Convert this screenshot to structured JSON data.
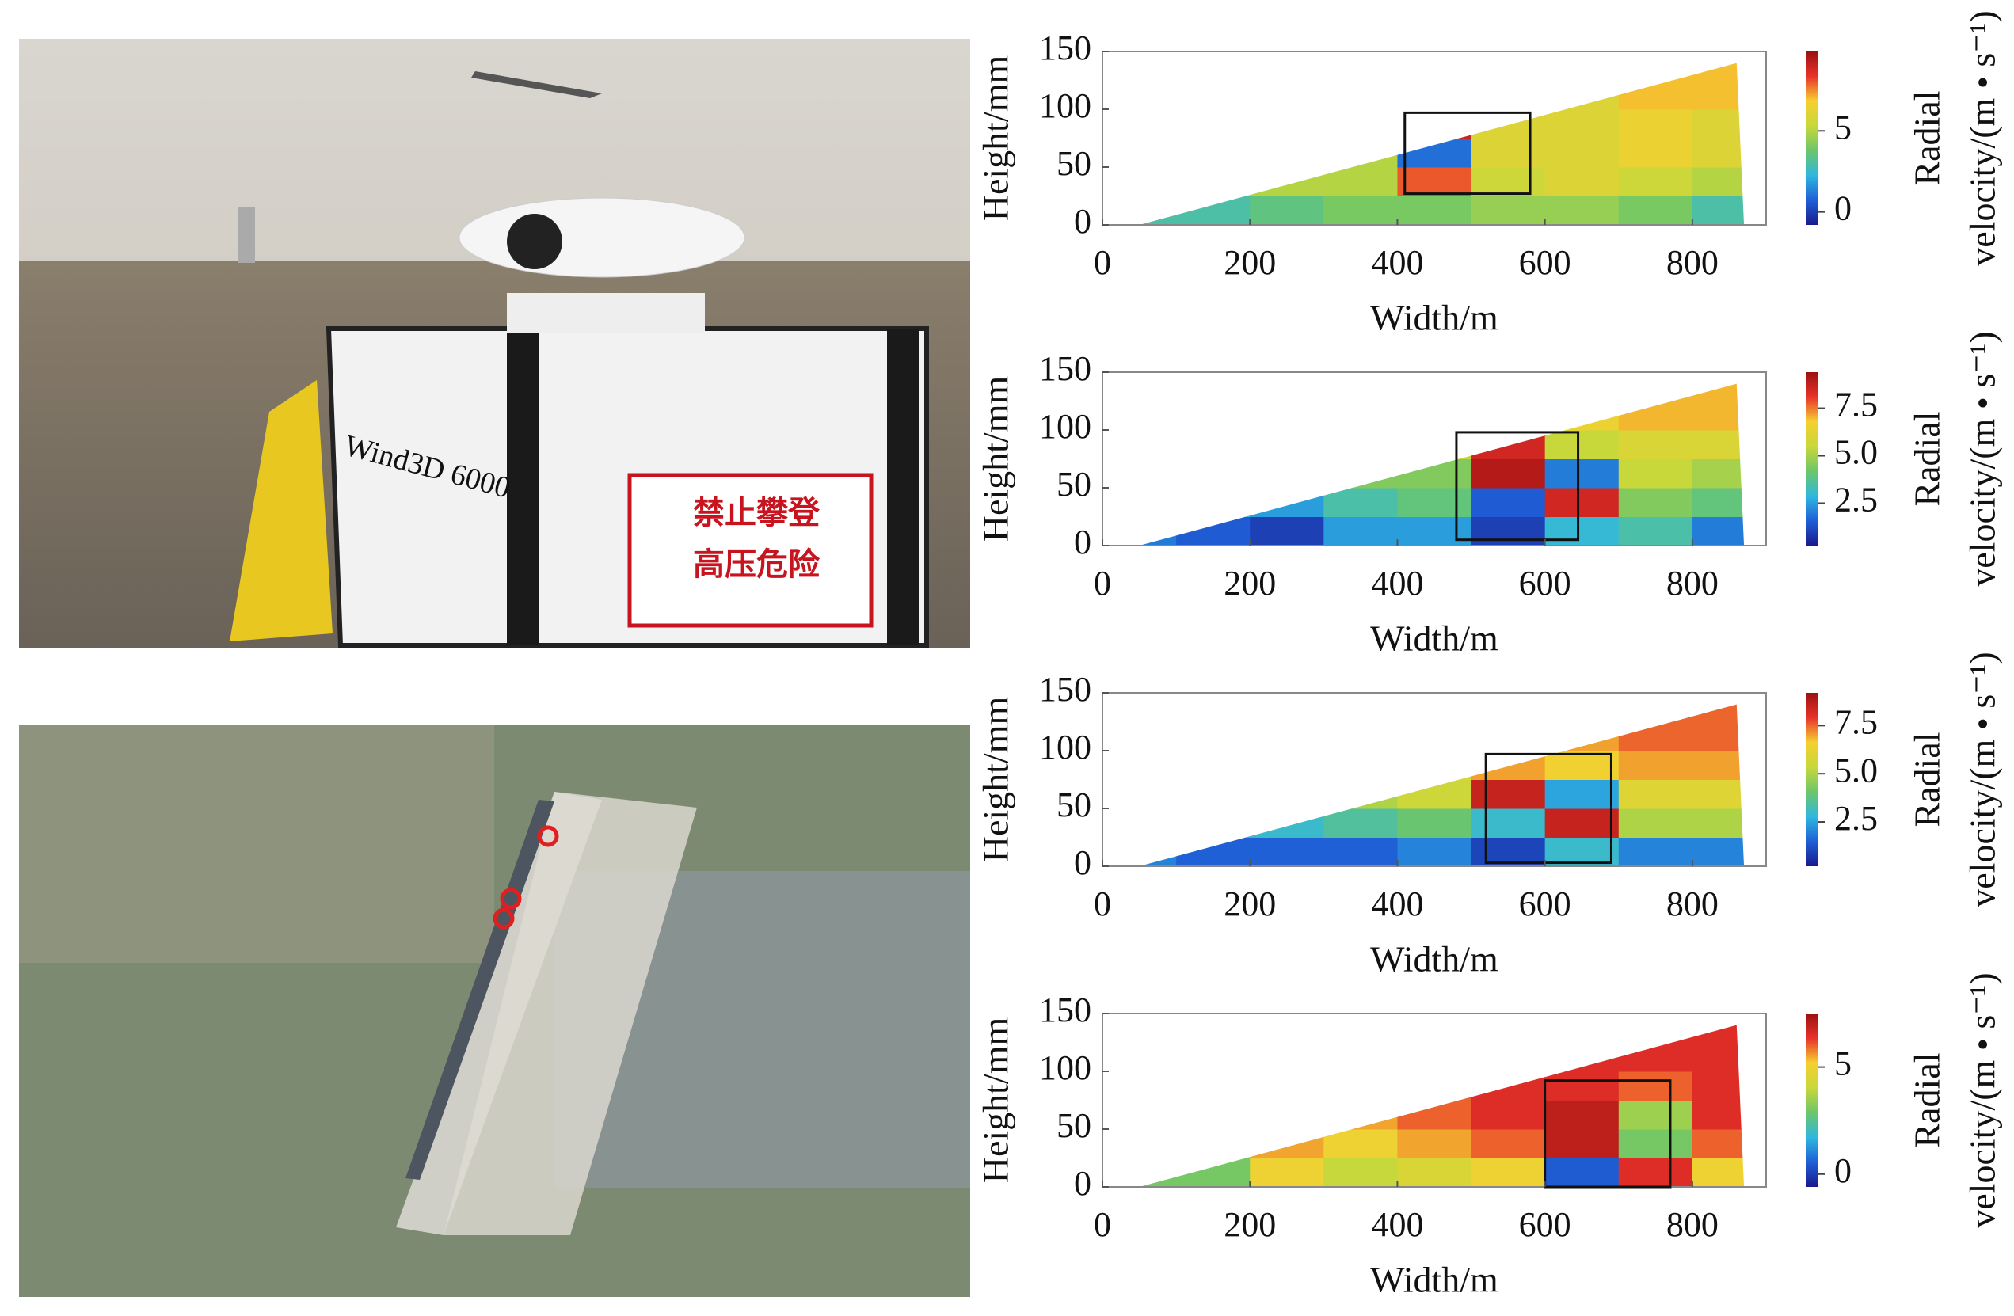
{
  "photos": {
    "lidar_texts": [
      "Wind3D 6000",
      "禁止攀登",
      "高压危险"
    ]
  },
  "chart_data": [
    {
      "type": "heatmap",
      "xlabel": "Width/m",
      "ylabel": "Height/mm",
      "colorbar_label": [
        "Radial",
        "velocity/(m • s⁻¹)"
      ],
      "xlim": [
        0,
        900
      ],
      "ylim": [
        0,
        150
      ],
      "xticks": [
        0,
        200,
        400,
        600,
        800
      ],
      "yticks": [
        0,
        50,
        100,
        150
      ],
      "clim": [
        -0.8,
        9.9
      ],
      "cticks": [
        0,
        5
      ],
      "colormap": [
        "#1a1a8c",
        "#1f5fd6",
        "#2fb8e0",
        "#6cc66a",
        "#c8d83a",
        "#f5d030",
        "#e8322a",
        "#9c1010"
      ],
      "xbins": [
        0,
        100,
        200,
        300,
        400,
        500,
        600,
        700,
        800,
        900
      ],
      "ybins": [
        0,
        25,
        50,
        75,
        100,
        125,
        150
      ],
      "z": [
        [
          3,
          3,
          3.5,
          4,
          4,
          4.5,
          4.5,
          4,
          3
        ],
        [
          5,
          5,
          5,
          5,
          8,
          5.5,
          6,
          5.5,
          5
        ],
        [
          5,
          5,
          5,
          5,
          1,
          6,
          6,
          6.5,
          6
        ],
        [
          5,
          5,
          5,
          5,
          9,
          6,
          6,
          6.5,
          6
        ],
        [
          6,
          6,
          6,
          6,
          6,
          6,
          6,
          7,
          7
        ],
        [
          6,
          6,
          6,
          6,
          6,
          6,
          6,
          7,
          7
        ]
      ],
      "sector": [
        [
          50,
          0
        ],
        [
          860,
          140
        ],
        [
          870,
          0
        ]
      ],
      "box": {
        "x": [
          410,
          580
        ],
        "y": [
          27,
          97
        ]
      }
    },
    {
      "type": "heatmap",
      "xlabel": "Width/m",
      "ylabel": "Height/mm",
      "colorbar_label": [
        "Radial",
        "velocity/(m • s⁻¹)"
      ],
      "xlim": [
        0,
        900
      ],
      "ylim": [
        0,
        150
      ],
      "xticks": [
        0,
        200,
        400,
        600,
        800
      ],
      "yticks": [
        0,
        50,
        100,
        150
      ],
      "clim": [
        0.27,
        9.4
      ],
      "cticks": [
        2.5,
        {
          "value": 5,
          "label": "5.0"
        },
        7.5
      ],
      "colormap": [
        "#1a1a8c",
        "#1f5fd6",
        "#2fb8e0",
        "#6cc66a",
        "#c8d83a",
        "#f5d030",
        "#e8322a",
        "#9c1010"
      ],
      "xbins": [
        0,
        100,
        200,
        300,
        400,
        500,
        600,
        700,
        800,
        900
      ],
      "ybins": [
        0,
        25,
        50,
        75,
        100,
        125,
        150
      ],
      "z": [
        [
          2,
          1.5,
          1,
          2.5,
          2.5,
          1,
          3,
          3.5,
          2
        ],
        [
          3,
          3,
          2.5,
          3.5,
          4,
          1.5,
          8.5,
          4.5,
          4
        ],
        [
          4,
          4,
          4,
          4.5,
          4.5,
          9,
          2,
          5.5,
          5
        ],
        [
          5,
          5,
          5,
          5,
          5.5,
          8.5,
          5.5,
          6,
          6
        ],
        [
          6,
          6,
          6,
          6,
          6,
          6,
          6.5,
          7,
          7
        ],
        [
          6,
          6,
          6,
          6,
          6,
          6,
          6.5,
          7,
          7
        ]
      ],
      "sector": [
        [
          50,
          0
        ],
        [
          860,
          140
        ],
        [
          870,
          0
        ]
      ],
      "box": {
        "x": [
          480,
          645
        ],
        "y": [
          5,
          98
        ]
      }
    },
    {
      "type": "heatmap",
      "xlabel": "Width/m",
      "ylabel": "Height/mm",
      "colorbar_label": [
        "Radial",
        "velocity/(m • s⁻¹)"
      ],
      "xlim": [
        0,
        900
      ],
      "ylim": [
        0,
        150
      ],
      "xticks": [
        0,
        200,
        400,
        600,
        800
      ],
      "yticks": [
        0,
        50,
        100,
        150
      ],
      "clim": [
        0.2,
        9.2
      ],
      "cticks": [
        2.5,
        {
          "value": 5,
          "label": "5.0"
        },
        7.5
      ],
      "colormap": [
        "#1a1a8c",
        "#1f5fd6",
        "#2fb8e0",
        "#6cc66a",
        "#c8d83a",
        "#f5d030",
        "#e8322a",
        "#9c1010"
      ],
      "xbins": [
        0,
        100,
        200,
        300,
        400,
        500,
        600,
        700,
        800,
        900
      ],
      "ybins": [
        0,
        25,
        50,
        75,
        100,
        125,
        150
      ],
      "z": [
        [
          2,
          1.5,
          1.5,
          1.5,
          2,
          1,
          3,
          2,
          2
        ],
        [
          3,
          2.5,
          3,
          3.5,
          4,
          3,
          8.5,
          5,
          5
        ],
        [
          5,
          5,
          5,
          5,
          5.5,
          8.5,
          2.5,
          6,
          6
        ],
        [
          5,
          5,
          5,
          5,
          6,
          7,
          6.5,
          7,
          7
        ],
        [
          6,
          6,
          6,
          6,
          6.5,
          7,
          7,
          7.5,
          7.5
        ],
        [
          6,
          6,
          6,
          6,
          6.5,
          7,
          7,
          7.5,
          7.5
        ]
      ],
      "sector": [
        [
          50,
          0
        ],
        [
          860,
          140
        ],
        [
          870,
          0
        ]
      ],
      "box": {
        "x": [
          520,
          690
        ],
        "y": [
          3,
          97
        ]
      }
    },
    {
      "type": "heatmap",
      "xlabel": "Width/m",
      "ylabel": "Height/mm",
      "colorbar_label": [
        "Radial",
        "velocity/(m • s⁻¹)"
      ],
      "xlim": [
        0,
        900
      ],
      "ylim": [
        0,
        150
      ],
      "xticks": [
        0,
        200,
        400,
        600,
        800
      ],
      "yticks": [
        0,
        50,
        100,
        150
      ],
      "clim": [
        -0.6,
        7.5
      ],
      "cticks": [
        0,
        5
      ],
      "colormap": [
        "#1a1a8c",
        "#1f5fd6",
        "#2fb8e0",
        "#6cc66a",
        "#c8d83a",
        "#f5d030",
        "#e8322a",
        "#9c1010"
      ],
      "xbins": [
        0,
        100,
        200,
        300,
        400,
        500,
        600,
        700,
        800,
        900
      ],
      "ybins": [
        0,
        25,
        50,
        75,
        100,
        125,
        150
      ],
      "z": [
        [
          3,
          3,
          5,
          4,
          4.5,
          5,
          0.5,
          6.5,
          5
        ],
        [
          3,
          3.5,
          5.5,
          5,
          5.5,
          6,
          7,
          3,
          6
        ],
        [
          4,
          4,
          5,
          5.5,
          6,
          6.5,
          7,
          3.5,
          6.5
        ],
        [
          4,
          4,
          5,
          5.5,
          6,
          6.5,
          6.5,
          6,
          6.5
        ],
        [
          5,
          5,
          5,
          6,
          6.5,
          6.5,
          6.5,
          6.5,
          6.5
        ],
        [
          5,
          5,
          5,
          6,
          6.5,
          6.5,
          6.5,
          6.5,
          6.5
        ]
      ],
      "sector": [
        [
          50,
          0
        ],
        [
          860,
          140
        ],
        [
          870,
          0
        ]
      ],
      "box": {
        "x": [
          600,
          770
        ],
        "y": [
          0,
          92
        ]
      }
    }
  ]
}
